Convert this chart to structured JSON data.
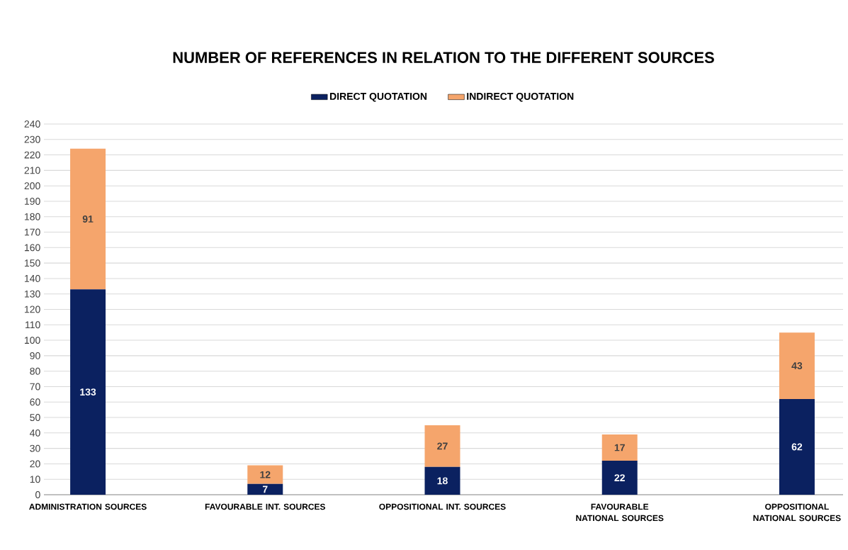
{
  "chart_data": {
    "type": "bar",
    "title": "NUMBER OF REFERENCES IN RELATION TO THE DIFFERENT SOURCES",
    "stacked": true,
    "categories": [
      "ADMINISTRATION SOURCES",
      "FAVOURABLE INT. SOURCES",
      "OPPOSITIONAL INT. SOURCES",
      "FAVOURABLE NATIONAL SOURCES",
      "OPPOSITIONAL NATIONAL SOURCES"
    ],
    "series": [
      {
        "name": "DIRECT QUOTATION",
        "color": "#0b2160",
        "values": [
          133,
          7,
          18,
          22,
          62
        ]
      },
      {
        "name": "INDIRECT QUOTATION",
        "color": "#f5a56c",
        "values": [
          91,
          12,
          27,
          17,
          43
        ]
      }
    ],
    "ylim": [
      0,
      240
    ],
    "yticks": [
      0,
      10,
      20,
      30,
      40,
      50,
      60,
      70,
      80,
      90,
      100,
      110,
      120,
      130,
      140,
      150,
      160,
      170,
      180,
      190,
      200,
      210,
      220,
      230,
      240
    ],
    "grid": "y",
    "legend": "top",
    "data_labels": true
  }
}
